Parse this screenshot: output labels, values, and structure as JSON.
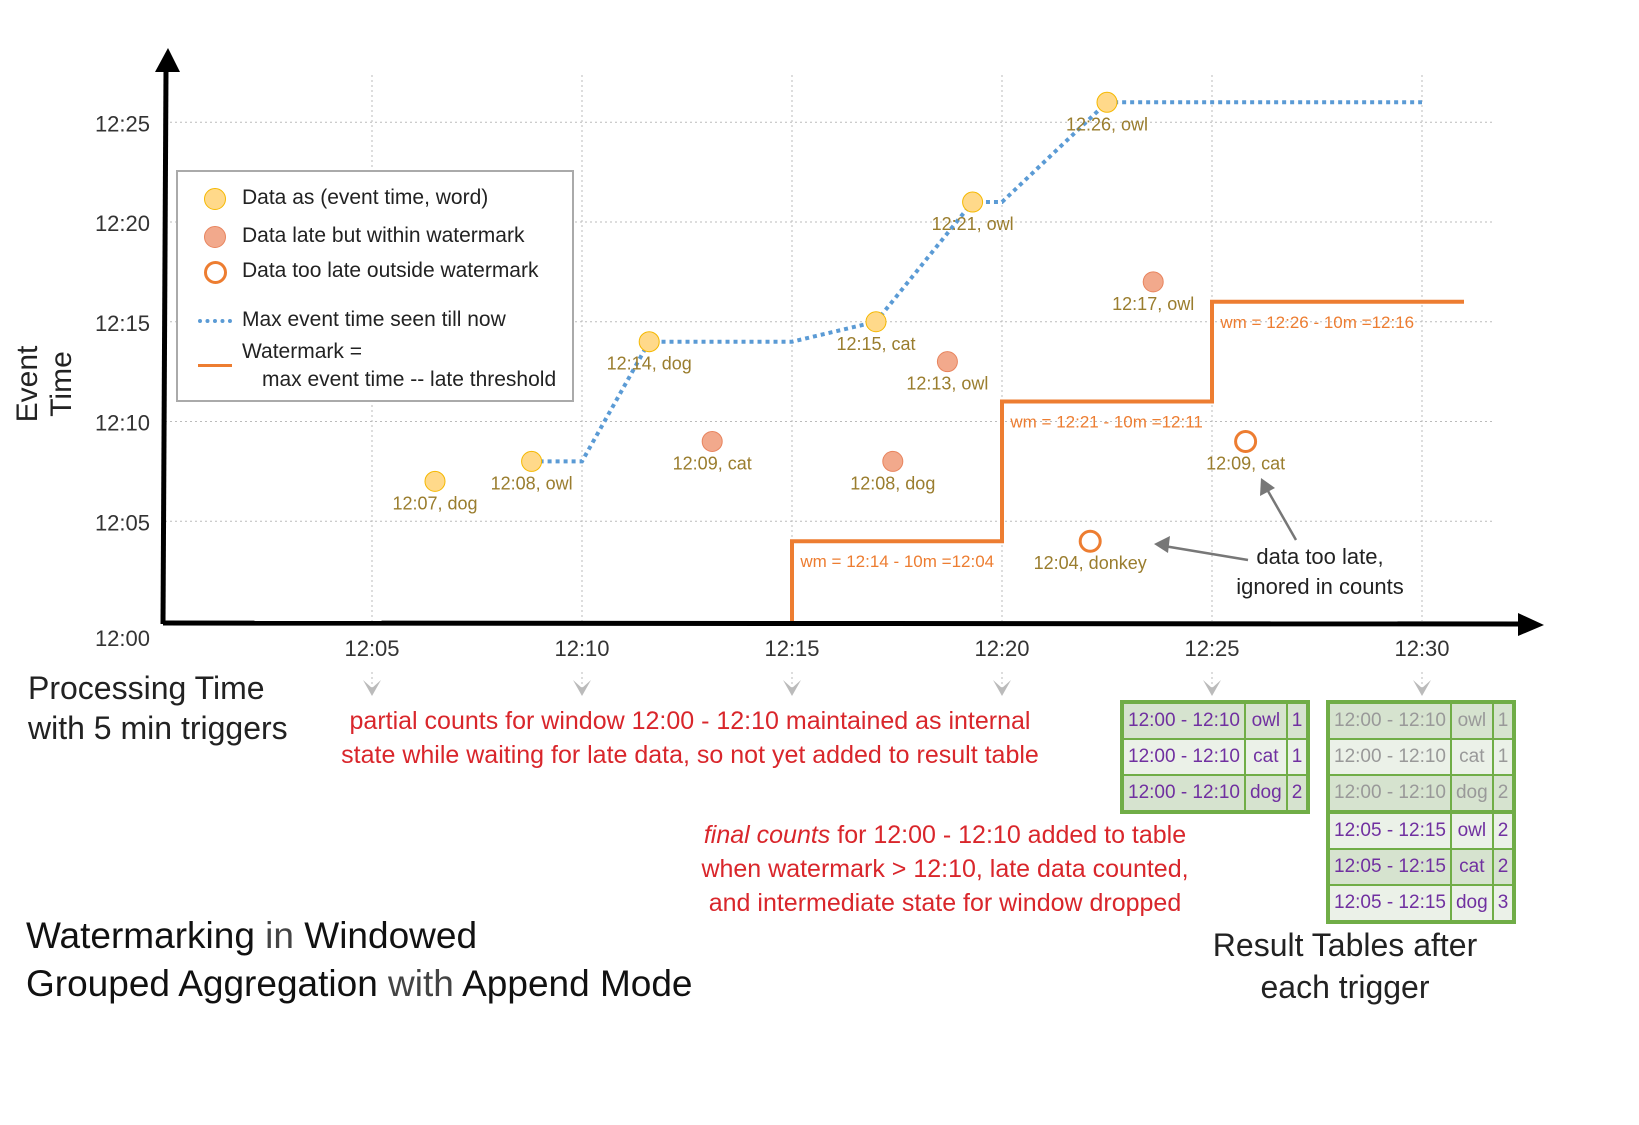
{
  "title": {
    "parts": [
      {
        "text": "Watermarking",
        "bold": true
      },
      {
        "text": " in ",
        "bold": false
      },
      {
        "text": "Windowed",
        "bold": true
      },
      {
        "text": "Grouped Aggregation",
        "bold": true
      },
      {
        "text": " with ",
        "bold": false
      },
      {
        "text": "Append Mode",
        "bold": true
      }
    ]
  },
  "axes": {
    "ylabel": "Event Time",
    "xlabel_line1": "Processing Time",
    "xlabel_line2": "with 5 min triggers",
    "x_ticks": [
      "12:05",
      "12:10",
      "12:15",
      "12:20",
      "12:25",
      "12:30"
    ],
    "y_ticks": [
      "12:00",
      "12:05",
      "12:10",
      "12:15",
      "12:20",
      "12:25"
    ]
  },
  "legend": {
    "on_time": "Data as (event time, word)",
    "late": "Data late but within watermark",
    "too_late": "Data too late outside watermark",
    "max_event": "Max event time seen till now",
    "watermark_1": "Watermark =",
    "watermark_2": "max event time -- late threshold"
  },
  "colors": {
    "on_time": "#ffd98a",
    "late": "#f2a98c",
    "too_late": "#ed7d31",
    "max_event": "#5b9bd5",
    "watermark": "#ed7d31",
    "table_border": "#70ad47",
    "table_text": "#7030a0",
    "annotation": "#d9262b"
  },
  "chart_data": {
    "x_unit": "processing time (min after 12:00)",
    "y_unit": "event time (min after 12:00)",
    "points": [
      {
        "label": "12:07, dog",
        "x": 6.5,
        "y": 7,
        "type": "on_time"
      },
      {
        "label": "12:08, owl",
        "x": 8.8,
        "y": 8,
        "type": "on_time"
      },
      {
        "label": "12:14, dog",
        "x": 11.6,
        "y": 14,
        "type": "on_time"
      },
      {
        "label": "12:09, cat",
        "x": 13.1,
        "y": 9,
        "type": "late"
      },
      {
        "label": "12:15, cat",
        "x": 17.0,
        "y": 15,
        "type": "on_time"
      },
      {
        "label": "12:08, dog",
        "x": 17.4,
        "y": 8,
        "type": "late"
      },
      {
        "label": "12:13, owl",
        "x": 18.7,
        "y": 13,
        "type": "late"
      },
      {
        "label": "12:21, owl",
        "x": 19.3,
        "y": 21,
        "type": "on_time"
      },
      {
        "label": "12:04, donkey",
        "x": 22.1,
        "y": 4,
        "type": "too_late"
      },
      {
        "label": "12:26, owl",
        "x": 22.5,
        "y": 26,
        "type": "on_time"
      },
      {
        "label": "12:17, owl",
        "x": 23.6,
        "y": 17,
        "type": "late"
      },
      {
        "label": "12:09, cat",
        "x": 25.8,
        "y": 9,
        "type": "too_late"
      }
    ],
    "max_event_line": [
      [
        8.8,
        8
      ],
      [
        10,
        8
      ],
      [
        11.6,
        14
      ],
      [
        15,
        14
      ],
      [
        17,
        15
      ],
      [
        19.3,
        21
      ],
      [
        20,
        21
      ],
      [
        22.5,
        26
      ],
      [
        30,
        26
      ]
    ],
    "watermark_line": [
      [
        15,
        0
      ],
      [
        15,
        4
      ],
      [
        20,
        4
      ],
      [
        20,
        11
      ],
      [
        25,
        11
      ],
      [
        25,
        16
      ],
      [
        31,
        16
      ]
    ],
    "watermark_labels": [
      {
        "text": "wm = 12:14 - 10m =12:04",
        "x": 15.2,
        "y": 3
      },
      {
        "text": "wm = 12:21 - 10m =12:11",
        "x": 20.2,
        "y": 10
      },
      {
        "text": "wm = 12:26 - 10m =12:16",
        "x": 25.2,
        "y": 15
      }
    ]
  },
  "annotations": {
    "too_late": [
      "data too late,",
      "ignored in counts"
    ],
    "partial": [
      "partial counts for window 12:00 - 12:10 maintained as internal",
      "state while waiting for late data, so not yet added  to result table"
    ],
    "final_em": "final counts",
    "final_rest": " for 12:00 - 12:10 added to table",
    "final_2": "when watermark > 12:10, late data counted,",
    "final_3": "and intermediate state for window dropped",
    "result_tables": [
      "Result Tables after",
      "each trigger"
    ]
  },
  "table_12_25": [
    [
      "12:00 - 12:10",
      "owl",
      "1"
    ],
    [
      "12:00 - 12:10",
      "cat",
      "1"
    ],
    [
      "12:00 - 12:10",
      "dog",
      "2"
    ]
  ],
  "table_12_30": [
    [
      "12:00 - 12:10",
      "owl",
      "1"
    ],
    [
      "12:00 - 12:10",
      "cat",
      "1"
    ],
    [
      "12:00 - 12:10",
      "dog",
      "2"
    ],
    [
      "12:05 - 12:15",
      "owl",
      "2"
    ],
    [
      "12:05 - 12:15",
      "cat",
      "2"
    ],
    [
      "12:05 - 12:15",
      "dog",
      "3"
    ]
  ]
}
